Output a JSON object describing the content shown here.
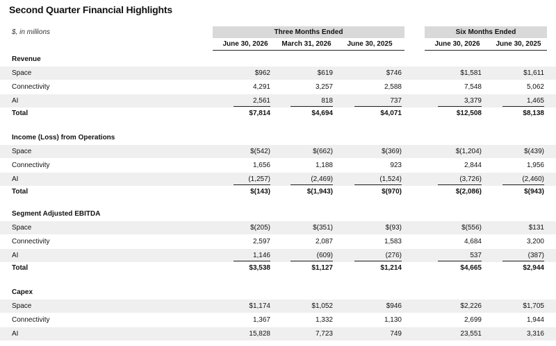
{
  "title": "Second Quarter Financial Highlights",
  "units": "$, in millions",
  "groups": {
    "three_months": "Three Months Ended",
    "six_months": "Six Months Ended"
  },
  "columns": [
    "June 30, 2026",
    "March 31, 2026",
    "June 30, 2025",
    "June 30, 2026",
    "June 30, 2025"
  ],
  "sections": [
    {
      "name": "Revenue",
      "rows": [
        {
          "label": "Space",
          "values": [
            "$962",
            "$619",
            "$746",
            "$1,581",
            "$1,611"
          ]
        },
        {
          "label": "Connectivity",
          "values": [
            "4,291",
            "3,257",
            "2,588",
            "7,548",
            "5,062"
          ]
        },
        {
          "label": "AI",
          "values": [
            "2,561",
            "818",
            "737",
            "3,379",
            "1,465"
          ]
        },
        {
          "label": "Total",
          "values": [
            "$7,814",
            "$4,694",
            "$4,071",
            "$12,508",
            "$8,138"
          ]
        }
      ]
    },
    {
      "name": "Income (Loss) from Operations",
      "rows": [
        {
          "label": "Space",
          "values": [
            "$(542)",
            "$(662)",
            "$(369)",
            "$(1,204)",
            "$(439)"
          ]
        },
        {
          "label": "Connectivity",
          "values": [
            "1,656",
            "1,188",
            "923",
            "2,844",
            "1,956"
          ]
        },
        {
          "label": "AI",
          "values": [
            "(1,257)",
            "(2,469)",
            "(1,524)",
            "(3,726)",
            "(2,460)"
          ]
        },
        {
          "label": "Total",
          "values": [
            "$(143)",
            "$(1,943)",
            "$(970)",
            "$(2,086)",
            "$(943)"
          ]
        }
      ]
    },
    {
      "name": "Segment Adjusted EBITDA",
      "rows": [
        {
          "label": "Space",
          "values": [
            "$(205)",
            "$(351)",
            "$(93)",
            "$(556)",
            "$131"
          ]
        },
        {
          "label": "Connectivity",
          "values": [
            "2,597",
            "2,087",
            "1,583",
            "4,684",
            "3,200"
          ]
        },
        {
          "label": "AI",
          "values": [
            "1,146",
            "(609)",
            "(276)",
            "537",
            "(387)"
          ]
        },
        {
          "label": "Total",
          "values": [
            "$3,538",
            "$1,127",
            "$1,214",
            "$4,665",
            "$2,944"
          ]
        }
      ]
    },
    {
      "name": "Capex",
      "rows": [
        {
          "label": "Space",
          "values": [
            "$1,174",
            "$1,052",
            "$946",
            "$2,226",
            "$1,705"
          ]
        },
        {
          "label": "Connectivity",
          "values": [
            "1,367",
            "1,332",
            "1,130",
            "2,699",
            "1,944"
          ]
        },
        {
          "label": "AI",
          "values": [
            "15,828",
            "7,723",
            "749",
            "23,551",
            "3,316"
          ]
        }
      ]
    }
  ]
}
